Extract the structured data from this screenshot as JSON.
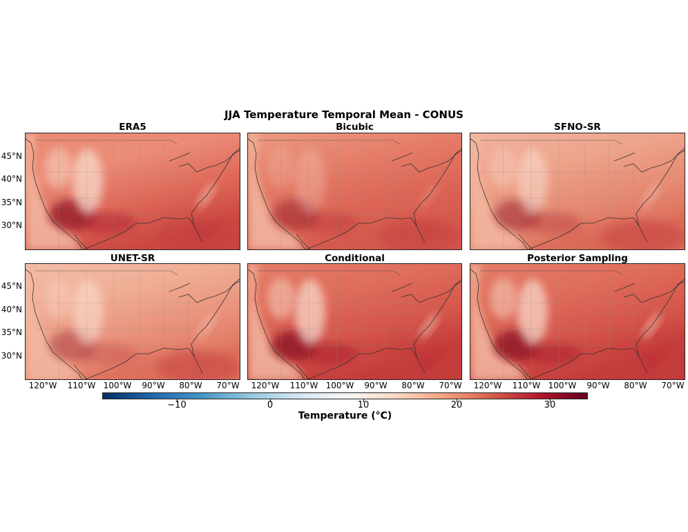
{
  "figure": {
    "title": "JJA Temperature Temporal Mean - CONUS"
  },
  "panels": [
    {
      "title": "ERA5",
      "style": "era5"
    },
    {
      "title": "Bicubic",
      "style": "bicubic"
    },
    {
      "title": "SFNO-SR",
      "style": "sfno"
    },
    {
      "title": "UNET-SR",
      "style": "unet"
    },
    {
      "title": "Conditional",
      "style": "cond"
    },
    {
      "title": "Posterior Sampling",
      "style": "post"
    }
  ],
  "axes": {
    "lat_ticks": [
      "45°N",
      "40°N",
      "35°N",
      "30°N"
    ],
    "lon_ticks": [
      "120°W",
      "110°W",
      "100°W",
      "90°W",
      "80°W",
      "70°W"
    ]
  },
  "colorbar": {
    "label": "Temperature (°C)",
    "ticks": [
      "−10",
      "0",
      "10",
      "20",
      "30"
    ],
    "colormap": "RdBu_r",
    "colors": [
      "#053061",
      "#2166ac",
      "#4393c3",
      "#92c5de",
      "#d1e5f0",
      "#f7f7f7",
      "#fddbc7",
      "#f4a582",
      "#d6604d",
      "#b2182b",
      "#67001f"
    ]
  }
}
